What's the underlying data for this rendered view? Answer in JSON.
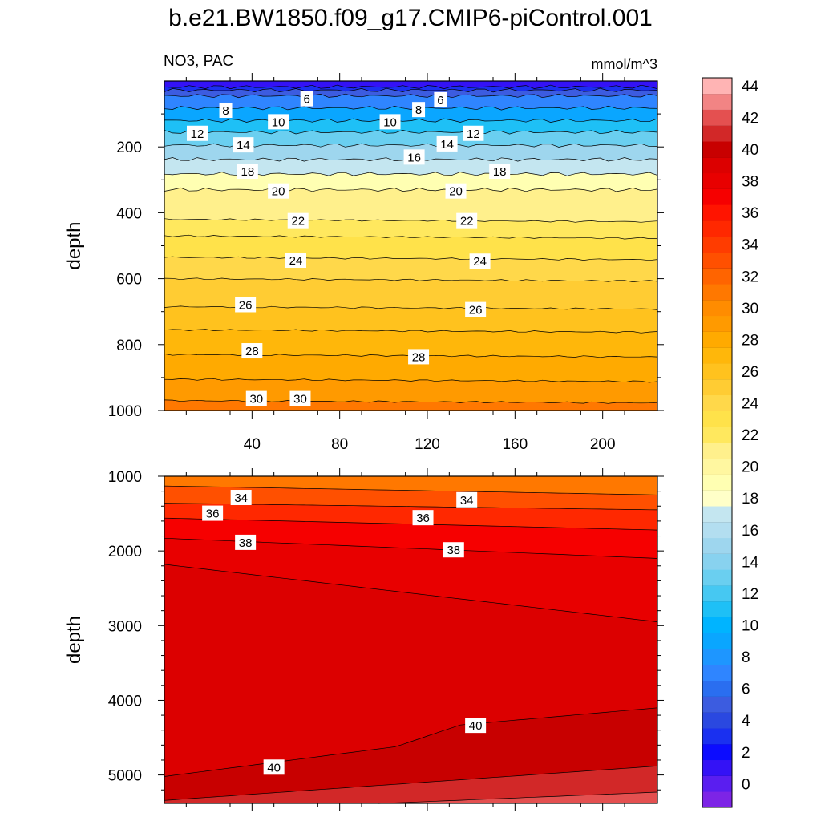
{
  "title": "b.e21.BW1850.f09_g17.CMIP6-piControl.001",
  "subtitle_left": "NO3, PAC",
  "subtitle_right": "mmol/m^3",
  "chart_data": [
    {
      "type": "contour",
      "panel": "upper",
      "ylabel": "depth",
      "xlabel": "",
      "xlim": [
        0,
        225
      ],
      "ylim": [
        1000,
        0
      ],
      "x_ticks": [
        40,
        80,
        120,
        160,
        200
      ],
      "y_ticks": [
        200,
        400,
        600,
        800,
        1000
      ],
      "contour_level_depths": [
        {
          "level": 2,
          "depth": 18
        },
        {
          "level": 4,
          "depth": 28
        },
        {
          "level": 6,
          "depth": 45
        },
        {
          "level": 8,
          "depth": 82
        },
        {
          "level": 10,
          "depth": 120
        },
        {
          "level": 12,
          "depth": 155
        },
        {
          "level": 14,
          "depth": 195
        },
        {
          "level": 16,
          "depth": 238
        },
        {
          "level": 18,
          "depth": 282
        },
        {
          "level": 20,
          "depth": 330
        },
        {
          "level": 22,
          "depth": 420
        },
        {
          "level": 23,
          "depth": 470
        },
        {
          "level": 24,
          "depth": 535
        },
        {
          "level": 25,
          "depth": 600
        },
        {
          "level": 26,
          "depth": 685
        },
        {
          "level": 27,
          "depth": 755
        },
        {
          "level": 28,
          "depth": 830
        },
        {
          "level": 29,
          "depth": 905
        },
        {
          "level": 30,
          "depth": 970
        }
      ],
      "contour_labels": [
        {
          "text": "6",
          "x": 65,
          "depth": 55
        },
        {
          "text": "6",
          "x": 126,
          "depth": 58
        },
        {
          "text": "8",
          "x": 28,
          "depth": 90
        },
        {
          "text": "8",
          "x": 116,
          "depth": 88
        },
        {
          "text": "10",
          "x": 52,
          "depth": 125
        },
        {
          "text": "10",
          "x": 103,
          "depth": 125
        },
        {
          "text": "12",
          "x": 15,
          "depth": 160
        },
        {
          "text": "12",
          "x": 141,
          "depth": 160
        },
        {
          "text": "14",
          "x": 36,
          "depth": 195
        },
        {
          "text": "14",
          "x": 129,
          "depth": 192
        },
        {
          "text": "16",
          "x": 114,
          "depth": 232
        },
        {
          "text": "18",
          "x": 38,
          "depth": 275
        },
        {
          "text": "18",
          "x": 153,
          "depth": 275
        },
        {
          "text": "20",
          "x": 52,
          "depth": 335
        },
        {
          "text": "20",
          "x": 133,
          "depth": 335
        },
        {
          "text": "22",
          "x": 61,
          "depth": 425
        },
        {
          "text": "22",
          "x": 138,
          "depth": 425
        },
        {
          "text": "24",
          "x": 60,
          "depth": 545
        },
        {
          "text": "24",
          "x": 144,
          "depth": 548
        },
        {
          "text": "26",
          "x": 37,
          "depth": 680
        },
        {
          "text": "26",
          "x": 142,
          "depth": 695
        },
        {
          "text": "28",
          "x": 40,
          "depth": 820
        },
        {
          "text": "28",
          "x": 116,
          "depth": 838
        },
        {
          "text": "30",
          "x": 42,
          "depth": 965
        },
        {
          "text": "30",
          "x": 62,
          "depth": 965
        }
      ]
    },
    {
      "type": "contour",
      "panel": "lower",
      "ylabel": "depth",
      "xlabel": "",
      "xlim": [
        0,
        225
      ],
      "ylim": [
        5380,
        1000
      ],
      "y_ticks": [
        1000,
        2000,
        3000,
        4000,
        5000
      ],
      "contour_lines": [
        {
          "level": 32,
          "depth_left": 1130,
          "depth_right": 1250
        },
        {
          "level": 34,
          "depth_left": 1360,
          "depth_right": 1450
        },
        {
          "level": 36,
          "depth_left": 1560,
          "depth_right": 1720
        },
        {
          "level": 38,
          "depth_left": 1830,
          "depth_right": 2100
        },
        {
          "level": 39,
          "depth_left": 2180,
          "depth_right": 2950
        },
        {
          "level": 40,
          "depth_left": 5020,
          "depth_right": 4100
        },
        {
          "level": 41,
          "depth_left": 5340,
          "depth_right": 4880
        },
        {
          "level": 42,
          "depth_left": 5500,
          "depth_right": 5230
        }
      ],
      "contour_labels": [
        {
          "text": "34",
          "x": 35,
          "depth": 1290
        },
        {
          "text": "34",
          "x": 138,
          "depth": 1320
        },
        {
          "text": "36",
          "x": 22,
          "depth": 1500
        },
        {
          "text": "36",
          "x": 118,
          "depth": 1560
        },
        {
          "text": "38",
          "x": 37,
          "depth": 1890
        },
        {
          "text": "38",
          "x": 132,
          "depth": 1990
        },
        {
          "text": "40",
          "x": 50,
          "depth": 4900
        },
        {
          "text": "40",
          "x": 142,
          "depth": 4340
        }
      ]
    },
    {
      "type": "colorbar",
      "range": [
        -1,
        46
      ],
      "step": 2,
      "tick_labels": [
        "0",
        "2",
        "4",
        "6",
        "8",
        "10",
        "12",
        "14",
        "16",
        "18",
        "20",
        "22",
        "24",
        "26",
        "28",
        "30",
        "32",
        "34",
        "36",
        "38",
        "40",
        "42",
        "44"
      ],
      "colors": [
        "#7d24e6",
        "#5a1ef0",
        "#3412f6",
        "#0c0cff",
        "#1a30f0",
        "#2a48e0",
        "#3c5ce0",
        "#2a6ef0",
        "#2f85ff",
        "#1e96ff",
        "#0aa6ff",
        "#00b4ff",
        "#1ec0f6",
        "#46c8f2",
        "#6acff0",
        "#88d2ef",
        "#9ed6ee",
        "#b3def0",
        "#c4e6f0",
        "#ffffc8",
        "#ffffb2",
        "#fff7a0",
        "#fff08c",
        "#ffe85e",
        "#ffe24a",
        "#ffd84a",
        "#ffcc33",
        "#ffc21e",
        "#ffb70a",
        "#ffaa00",
        "#ff9a00",
        "#ff8c00",
        "#ff7800",
        "#ff6400",
        "#ff5000",
        "#ff3c00",
        "#ff2800",
        "#ff1400",
        "#f60000",
        "#e80000",
        "#dc0000",
        "#c80000",
        "#d22828",
        "#e45050",
        "#f28484",
        "#ffb4b4"
      ]
    }
  ]
}
